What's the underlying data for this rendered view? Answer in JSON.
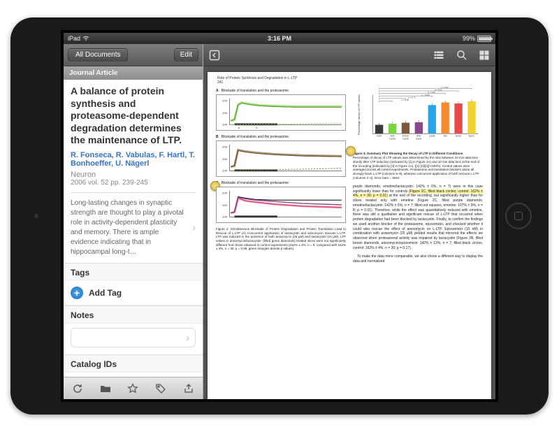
{
  "statusbar": {
    "carrier": "iPad",
    "time": "3:16 PM",
    "battery": "99%"
  },
  "sidebar": {
    "all_docs": "All Documents",
    "edit": "Edit",
    "type_header": "Journal Article",
    "article": {
      "title": "A balance of protein synthesis and proteasome-dependent degradation determines the maintenance of LTP.",
      "authors": "R. Fonseca, R. Vabulas, F. Hartl, T. Bonhoeffer, U. Nägerl",
      "journal": "Neuron",
      "meta": "2006 vol. 52 pp. 239-245",
      "abstract": "Long-lasting changes in synaptic strength are thought to play a pivotal role in activity-dependent plasticity and memory. There is ample evidence indicating that in hippocampal long-t…"
    },
    "tags_header": "Tags",
    "add_tag": "Add Tag",
    "notes_header": "Notes",
    "catalog_header": "Catalog IDs"
  },
  "pdf": {
    "running_head": "Role of Protein Synthesis and Degradation in L-LTP",
    "page_number": "241",
    "panel_a": {
      "label": "A",
      "title": "Blockade of translation and the proteasome"
    },
    "panel_b": {
      "label": "B",
      "title": "Blockade of translation and the proteasome"
    },
    "panel_c": {
      "label": "C",
      "title": "Blockade of translation and the proteasome"
    },
    "fig2_caption": "Figure 2. Simultaneous Blockade of Protein Degradation and Protein Translation Lead to Rescue of L-LTP\n(A) Concurrent application of lactacystin and anisomycin rescues L-LTP. LTP was induced in the presence of both anisomycin (25 µM) and lactacystin (10 µM). LTP values in anisomycin/lactacystin- (filled green diamonds) treated slices were not significantly different from those obtained in control experiments (162% ± 4%, n = 9, compared with 162% ± 4%, n = 30; p = 0.95; green triangles denote p values).",
    "barchart": {
      "title": "",
      "ylabel": "Percentage decay of LTP values",
      "ylim": [
        0,
        75
      ],
      "categories": [
        "Cont",
        "Ani/Lacta",
        "Emet/Lacta",
        "Ani/Epox",
        "Lacta",
        "Ani",
        "Emet",
        "Epox"
      ],
      "values": [
        17,
        19,
        21,
        22,
        55,
        60,
        58,
        62
      ],
      "colors": [
        "#3a3a3a",
        "#7bd442",
        "#7d5a3a",
        "#8a4a8a",
        "#2aa4e8",
        "#f58a2e",
        "#e84a4a",
        "#f2d22e"
      ],
      "pvals": [
        "p = 0.01",
        "p = 0.01",
        "p < 0.02",
        "p < 0.001",
        "p = 0.73",
        "p = 0.95"
      ]
    },
    "fig3_caption_title": "Figure 3. Summary Plot Showing the Decay of LTP in Different Conditions",
    "fig3_caption_body": "Percentage of decay of LTP values was determined by the ratio between 10 min data bins shortly after LTP induction (indicated by [1] in Figure 1A) and 10 min data bins at the end of the recording (indicated by [2] in Figure 1A), ([1]-[2]/[2])×100%). Control values were averaged across all control experiments. Proteasome and translation blockers alone all strongly block L-LTP (columns 5–8), whereas concurrent application of both rescues L-LTP (columns 2–4). Error bars = SEM.",
    "body_para1": "purple diamonds; emetine/lactacystin: 142% ± 6%, n = 7) were in this case significantly lower than for controls ",
    "body_hl": "(Figure 2C, filled black circles; control: 162% ± 4%, n = 30; p = 0.01)",
    "body_para2": " at the end of the recording, but significantly higher than for slices treated only with emetine (Figure 2C, filled purple diamonds; emetine/lactacystin: 142% ± 6%, n = 7; filled red squares, emetine: 107% ± 9%, n = 8; p = 0.01). Therefore, while the effect was quantitatively reduced with emetine, there was still a qualitative and significant rescue of L-LTP that occurred when protein degradation had been blocked by lactacystin. Finally, to confirm the findings we used another blocker of the proteasome, epoxomicin, and checked whether it could also rescue the effect of anisomycin on L-LTP. Epoxomicin (10 nM) in combination with anisomycin (25 µM) yielded results that mirrored the effects we observed when proteasomal activity was impaired by lactacystin (Figure 2B; filled brown diamonds, anisomycin/epoxomicin: 142% ± 13%, n = 7; filled black circles, control: 162% ± 4%, n = 30; p = 0.17).",
    "body_para3": "To make the data more comparable, we also chose a different way to display the data and normalized"
  }
}
